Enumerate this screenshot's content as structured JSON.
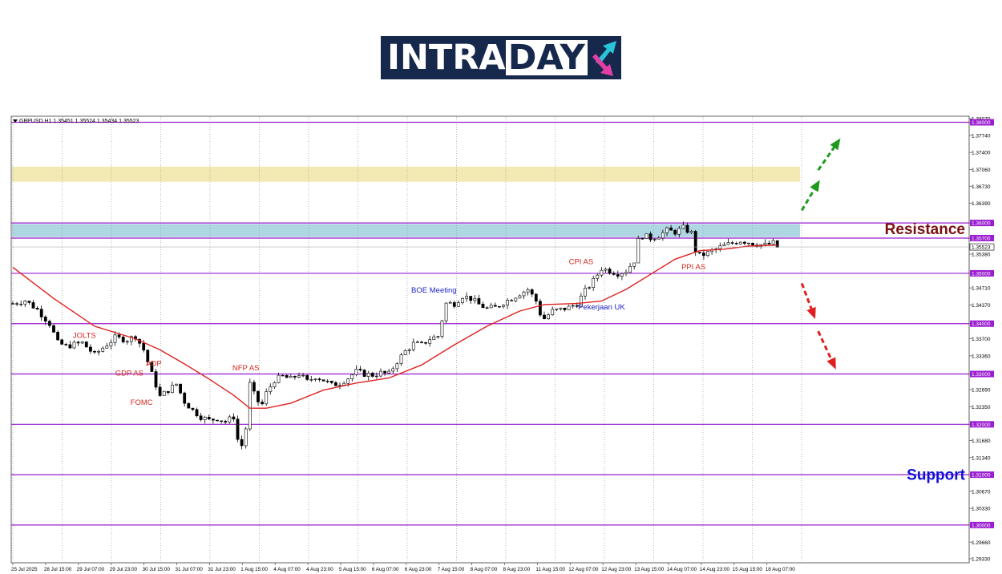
{
  "logo": {
    "text_main": "INTRA",
    "text_box": "DAY",
    "arrow_up_color": "#29c4d8",
    "arrow_down_color": "#e23ea3"
  },
  "chart_data": {
    "type": "candlestick",
    "symbol_info": "GBPUSD.H1  1.35451 1.35524 1.35434 1.35523",
    "current_price_label": "1.35523",
    "ylim": [
      1.2925,
      1.3812
    ],
    "price_ticks": [
      {
        "label": "1.38070",
        "value": 1.3807
      },
      {
        "label": "1.38000",
        "value": 1.38,
        "boxed": true
      },
      {
        "label": "1.37740",
        "value": 1.3774
      },
      {
        "label": "1.37400",
        "value": 1.374
      },
      {
        "label": "1.37060",
        "value": 1.3706
      },
      {
        "label": "1.36730",
        "value": 1.3673
      },
      {
        "label": "1.36390",
        "value": 1.3639
      },
      {
        "label": "1.36000",
        "value": 1.36,
        "boxed": true
      },
      {
        "label": "1.35700",
        "value": 1.357,
        "boxed": true
      },
      {
        "label": "1.35380",
        "value": 1.3538
      },
      {
        "label": "1.35000",
        "value": 1.35,
        "boxed": true
      },
      {
        "label": "1.34710",
        "value": 1.3471
      },
      {
        "label": "1.34370",
        "value": 1.3437
      },
      {
        "label": "1.34000",
        "value": 1.34,
        "boxed": true
      },
      {
        "label": "1.33700",
        "value": 1.337
      },
      {
        "label": "1.33360",
        "value": 1.3336
      },
      {
        "label": "1.33000",
        "value": 1.33,
        "boxed": true
      },
      {
        "label": "1.32690",
        "value": 1.3269
      },
      {
        "label": "1.32350",
        "value": 1.3235
      },
      {
        "label": "1.32000",
        "value": 1.32,
        "boxed": true
      },
      {
        "label": "1.31680",
        "value": 1.3168
      },
      {
        "label": "1.31340",
        "value": 1.3134
      },
      {
        "label": "1.31000",
        "value": 1.31,
        "boxed": true
      },
      {
        "label": "1.30670",
        "value": 1.3067
      },
      {
        "label": "1.30330",
        "value": 1.3033
      },
      {
        "label": "1.30000",
        "value": 1.3,
        "boxed": true
      },
      {
        "label": "1.29660",
        "value": 1.2966
      },
      {
        "label": "1.29330",
        "value": 1.2933
      }
    ],
    "horizontal_levels": [
      1.38,
      1.36,
      1.357,
      1.35,
      1.34,
      1.33,
      1.32,
      1.31,
      1.3
    ],
    "zones": [
      {
        "from": 1.3682,
        "to": 1.3712,
        "color": "#f3e9b3"
      },
      {
        "from": 1.3572,
        "to": 1.3598,
        "color": "#afd6e3"
      }
    ],
    "time_labels": [
      "25 Jul 2025",
      "28 Jul 15:00",
      "29 Jul 07:00",
      "29 Jul 23:00",
      "30 Jul 15:00",
      "31 Jul 07:00",
      "31 Jul 23:00",
      "1 Aug 15:00",
      "4 Aug 07:00",
      "4 Aug 23:00",
      "5 Aug 15:00",
      "6 Aug 07:00",
      "6 Aug 23:00",
      "7 Aug 15:00",
      "8 Aug 07:00",
      "8 Aug 23:00",
      "11 Aug 15:00",
      "12 Aug 07:00",
      "12 Aug 23:00",
      "13 Aug 15:00",
      "14 Aug 07:00",
      "14 Aug 23:00",
      "15 Aug 15:00",
      "18 Aug 07:00"
    ],
    "price_path": [
      [
        0,
        1.344
      ],
      [
        3,
        1.3446
      ],
      [
        6,
        1.3428
      ],
      [
        9,
        1.34
      ],
      [
        11,
        1.3362
      ],
      [
        13,
        1.3355
      ],
      [
        17,
        1.3362
      ],
      [
        20,
        1.3338
      ],
      [
        22,
        1.3352
      ],
      [
        25,
        1.3372
      ],
      [
        28,
        1.3368
      ],
      [
        30,
        1.3375
      ],
      [
        32,
        1.3348
      ],
      [
        34,
        1.33
      ],
      [
        35,
        1.3278
      ],
      [
        36,
        1.3255
      ],
      [
        38,
        1.3268
      ],
      [
        40,
        1.328
      ],
      [
        42,
        1.3245
      ],
      [
        44,
        1.3228
      ],
      [
        46,
        1.3215
      ],
      [
        48,
        1.3208
      ],
      [
        50,
        1.3212
      ],
      [
        52,
        1.3205
      ],
      [
        54,
        1.3215
      ],
      [
        55,
        1.317
      ],
      [
        56,
        1.3158
      ],
      [
        57,
        1.3192
      ],
      [
        58,
        1.328
      ],
      [
        59,
        1.326
      ],
      [
        60,
        1.3245
      ],
      [
        61,
        1.324
      ],
      [
        62,
        1.3262
      ],
      [
        64,
        1.3288
      ],
      [
        66,
        1.3295
      ],
      [
        68,
        1.329
      ],
      [
        70,
        1.33
      ],
      [
        72,
        1.3285
      ],
      [
        74,
        1.3295
      ],
      [
        76,
        1.3288
      ],
      [
        78,
        1.3278
      ],
      [
        80,
        1.3282
      ],
      [
        82,
        1.3292
      ],
      [
        84,
        1.3305
      ],
      [
        86,
        1.33
      ],
      [
        88,
        1.3298
      ],
      [
        90,
        1.3302
      ],
      [
        92,
        1.33
      ],
      [
        94,
        1.3325
      ],
      [
        96,
        1.3345
      ],
      [
        98,
        1.336
      ],
      [
        100,
        1.3358
      ],
      [
        102,
        1.337
      ],
      [
        104,
        1.3375
      ],
      [
        105,
        1.3408
      ],
      [
        106,
        1.344
      ],
      [
        108,
        1.344
      ],
      [
        110,
        1.3455
      ],
      [
        112,
        1.345
      ],
      [
        114,
        1.3438
      ],
      [
        116,
        1.343
      ],
      [
        118,
        1.3432
      ],
      [
        120,
        1.3442
      ],
      [
        122,
        1.345
      ],
      [
        124,
        1.346
      ],
      [
        126,
        1.3468
      ],
      [
        128,
        1.3445
      ],
      [
        129,
        1.342
      ],
      [
        130,
        1.341
      ],
      [
        132,
        1.3425
      ],
      [
        134,
        1.3428
      ],
      [
        136,
        1.3432
      ],
      [
        138,
        1.344
      ],
      [
        140,
        1.3465
      ],
      [
        142,
        1.3485
      ],
      [
        144,
        1.351
      ],
      [
        146,
        1.3505
      ],
      [
        148,
        1.35
      ],
      [
        150,
        1.3505
      ],
      [
        152,
        1.3525
      ],
      [
        153,
        1.3565
      ],
      [
        154,
        1.3575
      ],
      [
        156,
        1.357
      ],
      [
        158,
        1.3575
      ],
      [
        160,
        1.3585
      ],
      [
        162,
        1.3582
      ],
      [
        164,
        1.359
      ],
      [
        166,
        1.358
      ],
      [
        167,
        1.3545
      ],
      [
        168,
        1.3535
      ],
      [
        170,
        1.354
      ],
      [
        172,
        1.3548
      ],
      [
        174,
        1.3555
      ],
      [
        176,
        1.356
      ],
      [
        178,
        1.3565
      ],
      [
        180,
        1.3562
      ],
      [
        182,
        1.3558
      ],
      [
        184,
        1.3556
      ],
      [
        186,
        1.356
      ],
      [
        187,
        1.3552
      ]
    ],
    "moving_average": [
      [
        0,
        1.3512
      ],
      [
        10,
        1.345
      ],
      [
        20,
        1.3395
      ],
      [
        30,
        1.337
      ],
      [
        36,
        1.3348
      ],
      [
        42,
        1.332
      ],
      [
        48,
        1.329
      ],
      [
        54,
        1.3258
      ],
      [
        58,
        1.3232
      ],
      [
        62,
        1.3232
      ],
      [
        68,
        1.3242
      ],
      [
        76,
        1.3268
      ],
      [
        84,
        1.3282
      ],
      [
        92,
        1.3292
      ],
      [
        100,
        1.3318
      ],
      [
        108,
        1.3358
      ],
      [
        116,
        1.3395
      ],
      [
        124,
        1.3425
      ],
      [
        130,
        1.3438
      ],
      [
        138,
        1.344
      ],
      [
        144,
        1.3445
      ],
      [
        150,
        1.3468
      ],
      [
        156,
        1.3498
      ],
      [
        162,
        1.3528
      ],
      [
        168,
        1.3545
      ],
      [
        174,
        1.3548
      ],
      [
        180,
        1.3554
      ],
      [
        187,
        1.3556
      ]
    ],
    "annotations": [
      {
        "text": "JOLTS",
        "color": "#d42a20",
        "bar": 17.5,
        "price": 1.3372
      },
      {
        "text": "ADP",
        "color": "#d42a20",
        "bar": 34.5,
        "price": 1.3316
      },
      {
        "text": "GDP AS",
        "color": "#d42a20",
        "bar": 28.5,
        "price": 1.3297
      },
      {
        "text": "FOMC",
        "color": "#d42a20",
        "bar": 31.5,
        "price": 1.3239
      },
      {
        "text": "NFP AS",
        "color": "#d42a20",
        "bar": 57,
        "price": 1.3307
      },
      {
        "text": "BOE Meeting",
        "color": "#1e22c8",
        "bar": 103,
        "price": 1.3462
      },
      {
        "text": "Pekerjaan UK",
        "color": "#1e22c8",
        "bar": 144,
        "price": 1.3428
      },
      {
        "text": "CPI AS",
        "color": "#d42a20",
        "bar": 139,
        "price": 1.3518
      },
      {
        "text": "PPI AS",
        "color": "#d42a20",
        "bar": 166.5,
        "price": 1.3508
      }
    ],
    "zone_labels": [
      {
        "text": "Resistance",
        "color": "#7a1010",
        "price": 1.3578
      },
      {
        "text": "Support",
        "color": "#1010d8",
        "price": 1.309
      }
    ],
    "arrows": [
      {
        "color": "#1e9a1e",
        "direction": "up",
        "from": [
          193,
          1.3625
        ],
        "to": [
          197,
          1.368
        ]
      },
      {
        "color": "#1e9a1e",
        "direction": "up",
        "from": [
          197,
          1.3705
        ],
        "to": [
          202,
          1.3763
        ]
      },
      {
        "color": "#e02020",
        "direction": "down",
        "from": [
          193,
          1.348
        ],
        "to": [
          196,
          1.3415
        ]
      },
      {
        "color": "#e02020",
        "direction": "down",
        "from": [
          197,
          1.3385
        ],
        "to": [
          201,
          1.3315
        ]
      }
    ]
  }
}
